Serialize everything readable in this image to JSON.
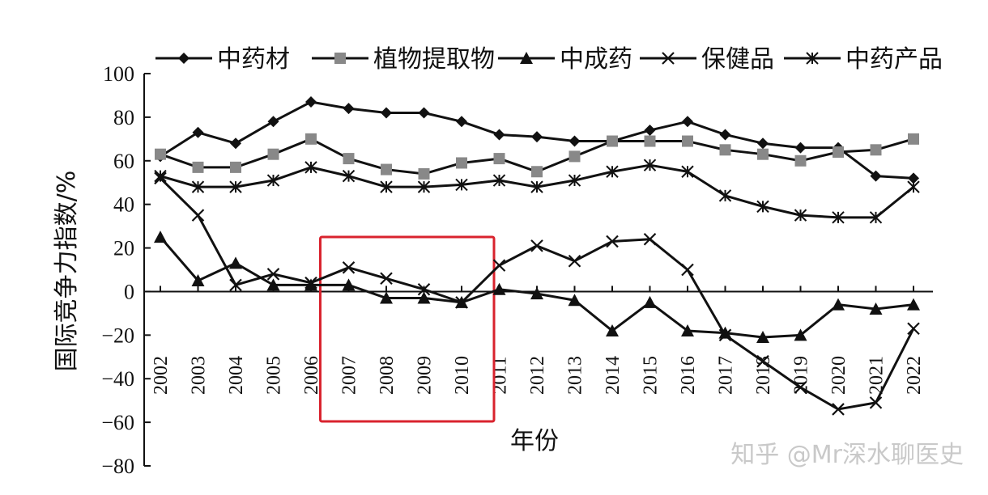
{
  "chart_data": {
    "type": "line",
    "xlabel": "年份",
    "ylabel": "国际竞争力指数/%",
    "ylim": [
      -80,
      100
    ],
    "yticks": [
      -80,
      -60,
      -40,
      -20,
      0,
      20,
      40,
      60,
      80,
      100
    ],
    "ytick_labels": [
      "−80",
      "−60",
      "−40",
      "−20",
      "0",
      "20",
      "40",
      "60",
      "80",
      "100"
    ],
    "categories": [
      "2002",
      "2003",
      "2004",
      "2005",
      "2006",
      "2007",
      "2008",
      "2009",
      "2010",
      "2011",
      "2012",
      "2013",
      "2014",
      "2015",
      "2016",
      "2017",
      "2018",
      "2019",
      "2020",
      "2021",
      "2022"
    ],
    "grid": false,
    "legend_position": "top",
    "series": [
      {
        "name": "中药材",
        "marker": "diamond",
        "color": "#111111",
        "values": [
          62,
          73,
          68,
          78,
          87,
          84,
          82,
          82,
          78,
          72,
          71,
          69,
          69,
          74,
          78,
          72,
          68,
          66,
          66,
          53,
          52
        ]
      },
      {
        "name": "植物提取物",
        "marker": "square",
        "color": "#111111",
        "marker_color": "#888888",
        "values": [
          63,
          57,
          57,
          63,
          70,
          61,
          56,
          54,
          59,
          61,
          55,
          62,
          69,
          69,
          69,
          65,
          63,
          60,
          64,
          65,
          70
        ]
      },
      {
        "name": "中成药",
        "marker": "triangle",
        "color": "#111111",
        "values": [
          25,
          5,
          13,
          3,
          3,
          3,
          -3,
          -3,
          -5,
          1,
          -1,
          -4,
          -18,
          -5,
          -18,
          -19,
          -21,
          -20,
          -6,
          -8,
          -6
        ]
      },
      {
        "name": "保健品",
        "marker": "x",
        "color": "#111111",
        "values": [
          52,
          35,
          3,
          8,
          4,
          11,
          6,
          1,
          -5,
          12,
          21,
          14,
          23,
          24,
          10,
          -20,
          -32,
          -44,
          -54,
          -51,
          -17
        ]
      },
      {
        "name": "中药产品",
        "marker": "star",
        "color": "#111111",
        "values": [
          53,
          48,
          48,
          51,
          57,
          53,
          48,
          48,
          49,
          51,
          48,
          51,
          55,
          58,
          55,
          44,
          39,
          35,
          34,
          34,
          48
        ]
      }
    ],
    "highlight": {
      "from": "2007",
      "to": "2010",
      "color": "#d9232e"
    }
  },
  "watermark": "知乎 @Mr深水聊医史"
}
